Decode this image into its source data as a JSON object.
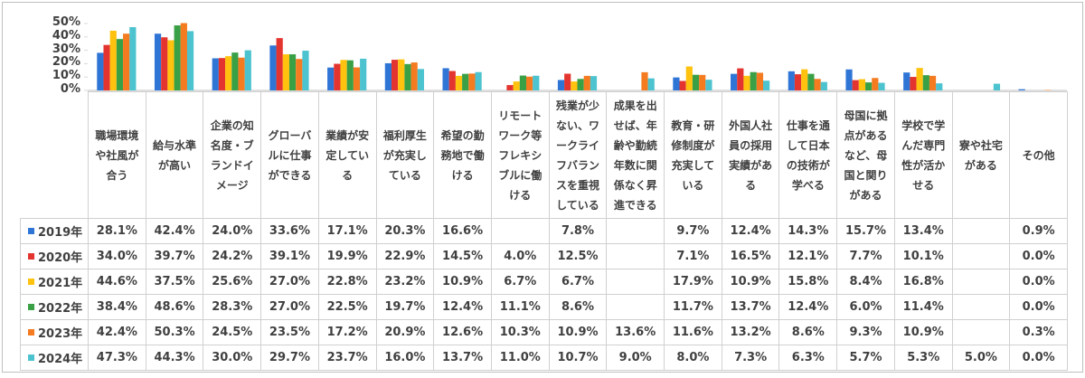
{
  "chart_data": {
    "type": "bar",
    "categories": [
      "職場環境や社風が合う",
      "給与水準が高い",
      "企業の知名度・ブランドイメージ",
      "グローバルに仕事ができる",
      "業績が安定している",
      "福利厚生が充実している",
      "希望の勤務地で働ける",
      "リモートワーク等フレキシブルに働ける",
      "残業が少ない、ワークライフバランスを重視している",
      "成果を出せば、年齢や勤続年数に関係なく昇進できる",
      "教育・研修制度が充実している",
      "外国人社員の採用実績がある",
      "仕事を通して日本の技術が学べる",
      "母国に拠点があるなど、母国と関りがある",
      "学校で学んだ専門性が活かせる",
      "寮や社宅がある",
      "その他"
    ],
    "series": [
      {
        "name": "2019年",
        "color": "#2f75d6",
        "values": [
          28.1,
          42.4,
          24.0,
          33.6,
          17.1,
          20.3,
          16.6,
          null,
          7.8,
          null,
          9.7,
          12.4,
          14.3,
          15.7,
          13.4,
          null,
          0.9
        ],
        "value_labels": [
          "28.1%",
          "42.4%",
          "24.0%",
          "33.6%",
          "17.1%",
          "20.3%",
          "16.6%",
          null,
          "7.8%",
          null,
          "9.7%",
          "12.4%",
          "14.3%",
          "15.7%",
          "13.4%",
          null,
          "0.9%"
        ]
      },
      {
        "name": "2020年",
        "color": "#e3342f",
        "values": [
          34.0,
          39.7,
          24.2,
          39.1,
          19.9,
          22.9,
          14.5,
          4.0,
          12.5,
          null,
          7.1,
          16.5,
          12.1,
          7.7,
          10.1,
          null,
          0.0
        ],
        "value_labels": [
          "34.0%",
          "39.7%",
          "24.2%",
          "39.1%",
          "19.9%",
          "22.9%",
          "14.5%",
          "4.0%",
          "12.5%",
          null,
          "7.1%",
          "16.5%",
          "12.1%",
          "7.7%",
          "10.1%",
          null,
          "0.0%"
        ]
      },
      {
        "name": "2021年",
        "color": "#ffc20e",
        "values": [
          44.6,
          37.5,
          25.6,
          27.0,
          22.8,
          23.2,
          10.9,
          6.7,
          6.7,
          null,
          17.9,
          10.9,
          15.8,
          8.4,
          16.8,
          null,
          0.0
        ],
        "value_labels": [
          "44.6%",
          "37.5%",
          "25.6%",
          "27.0%",
          "22.8%",
          "23.2%",
          "10.9%",
          "6.7%",
          "6.7%",
          null,
          "17.9%",
          "10.9%",
          "15.8%",
          "8.4%",
          "16.8%",
          null,
          "0.0%"
        ]
      },
      {
        "name": "2022年",
        "color": "#3aa046",
        "values": [
          38.4,
          48.6,
          28.3,
          27.0,
          22.5,
          19.7,
          12.4,
          11.1,
          8.6,
          null,
          11.7,
          13.7,
          12.4,
          6.0,
          11.4,
          null,
          0.0
        ],
        "value_labels": [
          "38.4%",
          "48.6%",
          "28.3%",
          "27.0%",
          "22.5%",
          "19.7%",
          "12.4%",
          "11.1%",
          "8.6%",
          null,
          "11.7%",
          "13.7%",
          "12.4%",
          "6.0%",
          "11.4%",
          null,
          "0.0%"
        ]
      },
      {
        "name": "2023年",
        "color": "#f47b20",
        "values": [
          42.4,
          50.3,
          24.5,
          23.5,
          17.2,
          20.9,
          12.6,
          10.3,
          10.9,
          13.6,
          11.6,
          13.2,
          8.6,
          9.3,
          10.9,
          null,
          0.3
        ],
        "value_labels": [
          "42.4%",
          "50.3%",
          "24.5%",
          "23.5%",
          "17.2%",
          "20.9%",
          "12.6%",
          "10.3%",
          "10.9%",
          "13.6%",
          "11.6%",
          "13.2%",
          "8.6%",
          "9.3%",
          "10.9%",
          null,
          "0.3%"
        ]
      },
      {
        "name": "2024年",
        "color": "#4cc3cf",
        "values": [
          47.3,
          44.3,
          30.0,
          29.7,
          23.7,
          16.0,
          13.7,
          11.0,
          10.7,
          9.0,
          8.0,
          7.3,
          6.3,
          5.7,
          5.3,
          5.0,
          0.0
        ],
        "value_labels": [
          "47.3%",
          "44.3%",
          "30.0%",
          "29.7%",
          "23.7%",
          "16.0%",
          "13.7%",
          "11.0%",
          "10.7%",
          "9.0%",
          "8.0%",
          "7.3%",
          "6.3%",
          "5.7%",
          "5.3%",
          "5.0%",
          "0.0%"
        ]
      }
    ],
    "ylim": [
      0,
      50
    ],
    "yticks": [
      {
        "value": 0,
        "label": "0%"
      },
      {
        "value": 10,
        "label": "10%"
      },
      {
        "value": 20,
        "label": "20%"
      },
      {
        "value": 30,
        "label": "30%"
      },
      {
        "value": 40,
        "label": "40%"
      },
      {
        "value": 50,
        "label": "50%"
      }
    ]
  }
}
